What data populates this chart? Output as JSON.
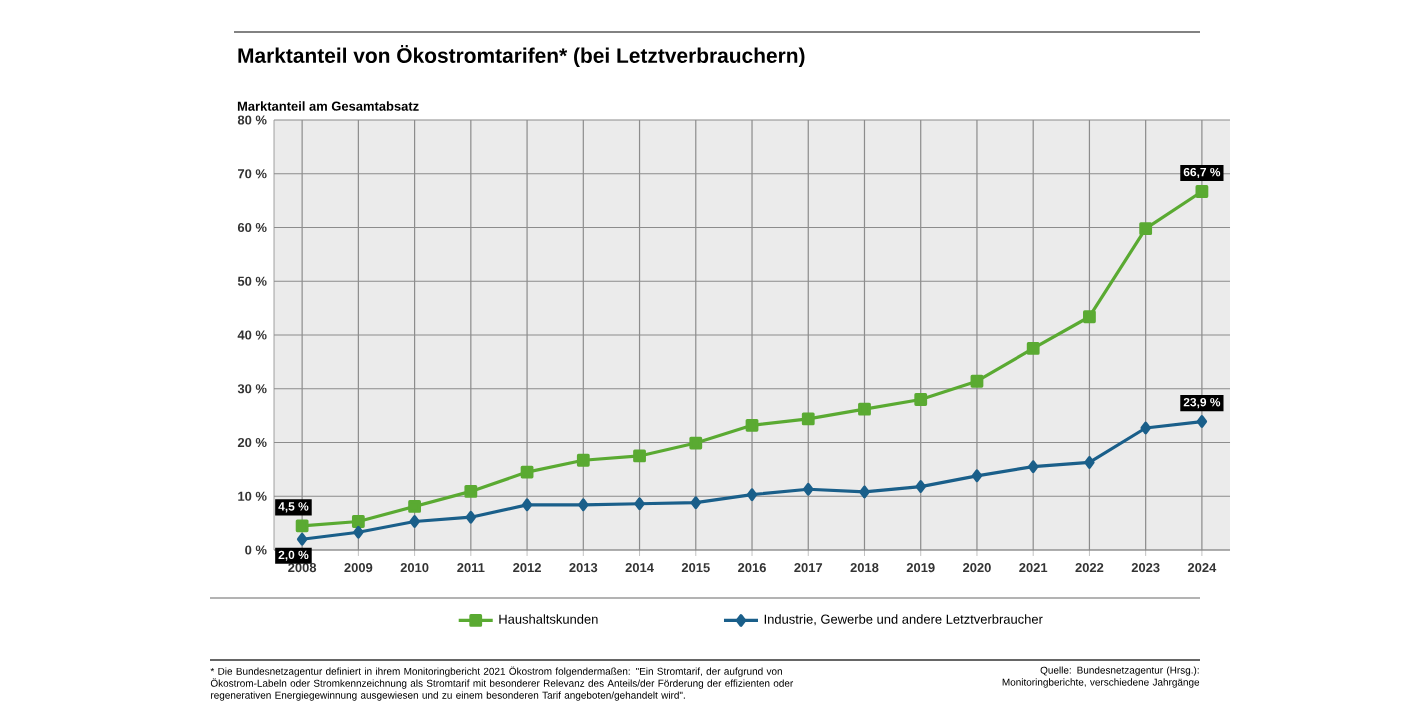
{
  "chart_data": {
    "type": "line",
    "title": "Marktanteil von Ökostromtarifen* (bei Letztverbrauchern)",
    "ylabel": "Marktanteil am Gesamtabsatz",
    "categories": [
      "2008",
      "2009",
      "2010",
      "2011",
      "2012",
      "2013",
      "2014",
      "2015",
      "2016",
      "2017",
      "2018",
      "2019",
      "2020",
      "2021",
      "2022",
      "2023",
      "2024"
    ],
    "series": [
      {
        "name": "Haushaltskunden",
        "color": "#5aaa32",
        "marker": "square",
        "values": [
          4.5,
          5.3,
          8.1,
          10.9,
          14.5,
          16.7,
          17.5,
          19.9,
          23.2,
          24.4,
          26.2,
          28.0,
          31.4,
          37.5,
          43.4,
          59.8,
          66.7
        ],
        "value_labels": [
          "4,5 %",
          null,
          null,
          null,
          null,
          null,
          null,
          null,
          null,
          null,
          null,
          null,
          null,
          null,
          null,
          null,
          "66,7 %"
        ]
      },
      {
        "name": "Industrie, Gewerbe und andere Letztverbraucher",
        "color": "#1a5f8a",
        "marker": "diamond",
        "values": [
          2.0,
          3.3,
          5.3,
          6.1,
          8.4,
          8.4,
          8.6,
          8.8,
          10.3,
          11.3,
          10.8,
          11.8,
          13.8,
          15.5,
          16.3,
          22.7,
          23.9
        ],
        "value_labels": [
          "2,0 %",
          null,
          null,
          null,
          null,
          null,
          null,
          null,
          null,
          null,
          null,
          null,
          null,
          null,
          null,
          null,
          "23,9 %"
        ]
      }
    ],
    "ylim": [
      0,
      80
    ],
    "yticks": [
      {
        "value": 0,
        "label": "0 %"
      },
      {
        "value": 10,
        "label": "10 %"
      },
      {
        "value": 20,
        "label": "20 %"
      },
      {
        "value": 30,
        "label": "30 %"
      },
      {
        "value": 40,
        "label": "40 %"
      },
      {
        "value": 50,
        "label": "50 %"
      },
      {
        "value": 60,
        "label": "60 %"
      },
      {
        "value": 70,
        "label": "70 %"
      },
      {
        "value": 80,
        "label": "80 %"
      }
    ],
    "grid": true,
    "legend": "bottom",
    "line_style": "solid",
    "annotations": [
      "* Die Bundesnetzagentur definiert in ihrem Monitoringbericht 2021 Ökostrom folgendermaßen: \"Ein Stromtarif, der aufgrund von Ökostrom-Labeln oder Stromkennzeichnung als Stromtarif mit besonderer Relevanz des Anteils/der Förderung der effizienten oder regenerativen Energiegewinnung ausgewiesen und zu einem besonderen Tarif angeboten/gehandelt wird\".",
      "Quelle: Bundesnetzagentur (Hrsg.): Monitoringberichte, verschiedene Jahrgänge"
    ]
  }
}
